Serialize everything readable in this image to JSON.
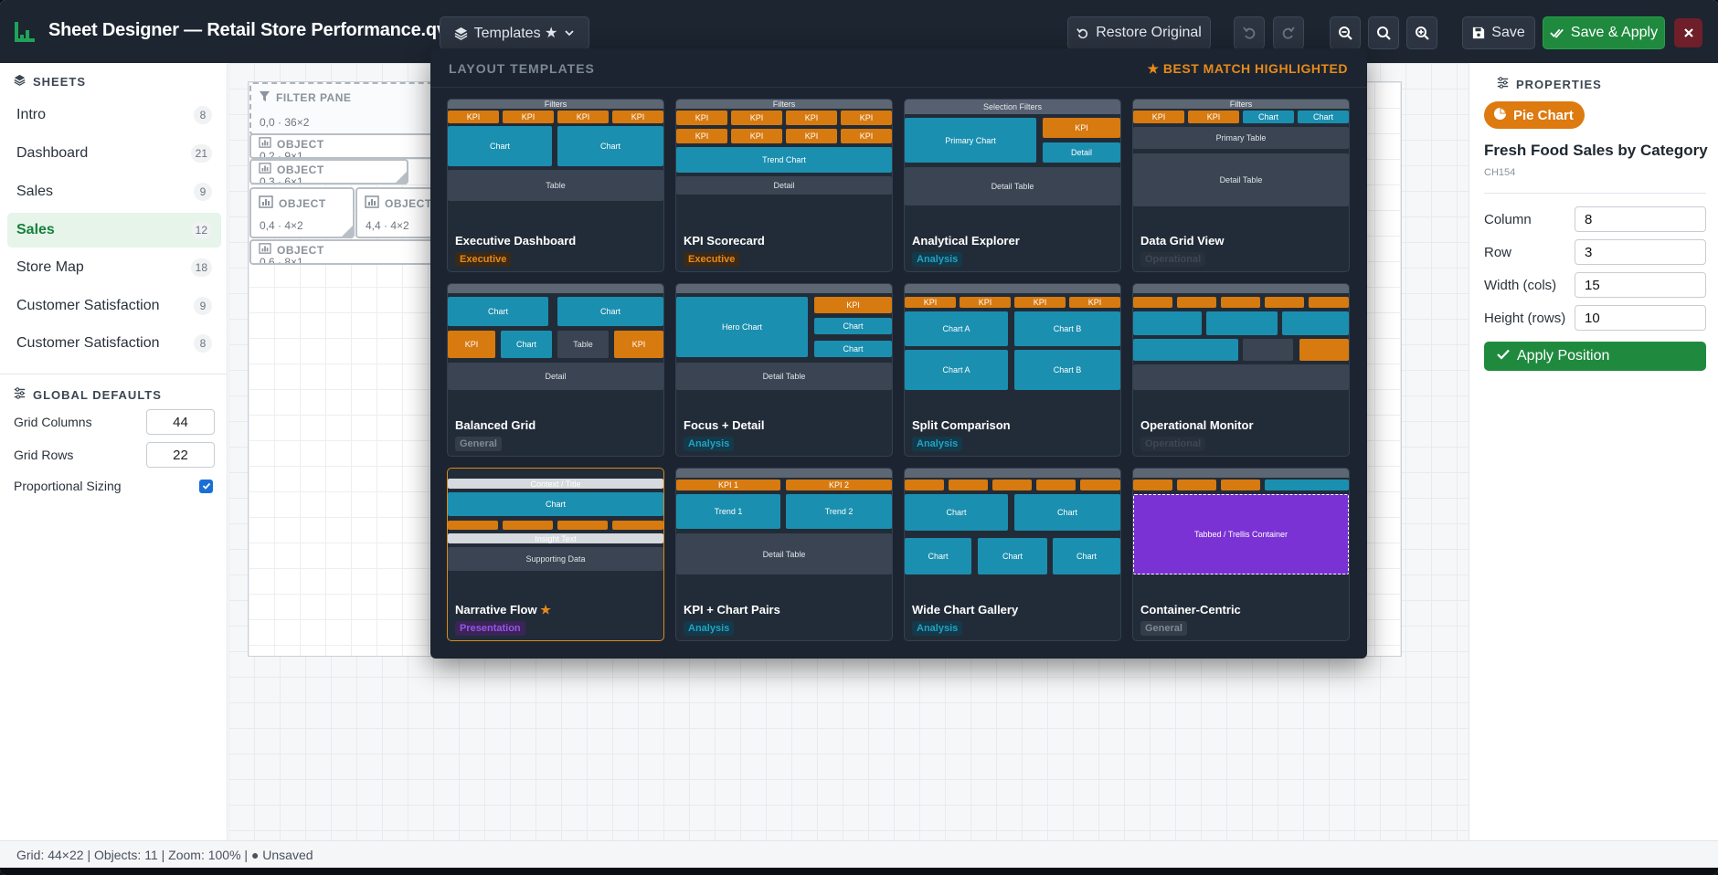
{
  "app": {
    "title": "Sheet Designer — Retail Store Performance.qvw",
    "templates_label": "Templates ★",
    "restore_label": "Restore Original",
    "save_label": "Save",
    "save_apply_label": "Save & Apply"
  },
  "sidebar": {
    "sheets_header": "SHEETS",
    "sheets": [
      {
        "label": "Intro",
        "count": "8"
      },
      {
        "label": "Dashboard",
        "count": "21"
      },
      {
        "label": "Sales",
        "count": "9"
      },
      {
        "label": "Sales",
        "count": "12"
      },
      {
        "label": "Store Map",
        "count": "18"
      },
      {
        "label": "Customer Satisfaction",
        "count": "9"
      },
      {
        "label": "Customer Satisfaction",
        "count": "8"
      }
    ],
    "global_header": "GLOBAL DEFAULTS",
    "grid_columns_label": "Grid Columns",
    "grid_columns_value": "44",
    "grid_rows_label": "Grid Rows",
    "grid_rows_value": "22",
    "proportional_label": "Proportional Sizing"
  },
  "canvas": {
    "filter_pane": {
      "label": "FILTER PANE",
      "dims": "0,0 · 36×2"
    },
    "objects": [
      {
        "label": "OBJECT",
        "dims": "0,2 · 9×1"
      },
      {
        "label": "OBJECT",
        "dims": "0,3 · 6×1"
      },
      {
        "label": "OBJECT",
        "dims": "0,4 · 4×2"
      },
      {
        "label": "OBJECT",
        "dims": "4,4 · 4×2"
      },
      {
        "label": "OBJECT",
        "dims": "0,6 · 8×1"
      }
    ]
  },
  "properties": {
    "header": "PROPERTIES",
    "badge": "Pie Chart",
    "title": "Fresh Food Sales by Category",
    "id": "CH154",
    "column_label": "Column",
    "column_value": "8",
    "row_label": "Row",
    "row_value": "3",
    "width_label": "Width (cols)",
    "width_value": "15",
    "height_label": "Height (rows)",
    "height_value": "10",
    "apply_label": "Apply Position"
  },
  "templates": {
    "header": "LAYOUT TEMPLATES",
    "best_match": "★ BEST MATCH HIGHLIGHTED",
    "cards": [
      {
        "name": "Executive Dashboard",
        "tag": "Executive"
      },
      {
        "name": "KPI Scorecard",
        "tag": "Executive"
      },
      {
        "name": "Analytical Explorer",
        "tag": "Analysis"
      },
      {
        "name": "Data Grid View",
        "tag": "Operational"
      },
      {
        "name": "Balanced Grid",
        "tag": "General"
      },
      {
        "name": "Focus + Detail",
        "tag": "Analysis"
      },
      {
        "name": "Split Comparison",
        "tag": "Analysis"
      },
      {
        "name": "Operational Monitor",
        "tag": "Operational"
      },
      {
        "name": "Narrative Flow",
        "tag": "Presentation",
        "star": "★"
      },
      {
        "name": "KPI + Chart Pairs",
        "tag": "Analysis"
      },
      {
        "name": "Wide Chart Gallery",
        "tag": "Analysis"
      },
      {
        "name": "Container-Centric",
        "tag": "General"
      }
    ],
    "thumb_labels": {
      "filters": "Filters",
      "selection_filters": "Selection Filters",
      "kpi": "KPI",
      "kpi1": "KPI 1",
      "kpi2": "KPI 2",
      "chart": "Chart",
      "table": "Table",
      "detail": "Detail",
      "trend_chart": "Trend Chart",
      "primary_chart": "Primary Chart",
      "detail_table": "Detail Table",
      "primary_table": "Primary Table",
      "hero_chart": "Hero Chart",
      "chart_a": "Chart A",
      "chart_b": "Chart B",
      "context_title": "Context / Title",
      "insight_text": "Insight Text",
      "supporting_data": "Supporting Data",
      "trend1": "Trend 1",
      "trend2": "Trend 2",
      "tabbed": "Tabbed / Trellis Container"
    }
  },
  "status": {
    "text": "Grid: 44×22 | Objects: 11 | Zoom: 100% | ● Unsaved"
  },
  "colors": {
    "accent_green": "#1f8a3e",
    "kpi_orange": "#d77a10",
    "chart_teal": "#1b8fb0",
    "container_purple": "#7b32d4",
    "topbar": "#1c2530"
  }
}
